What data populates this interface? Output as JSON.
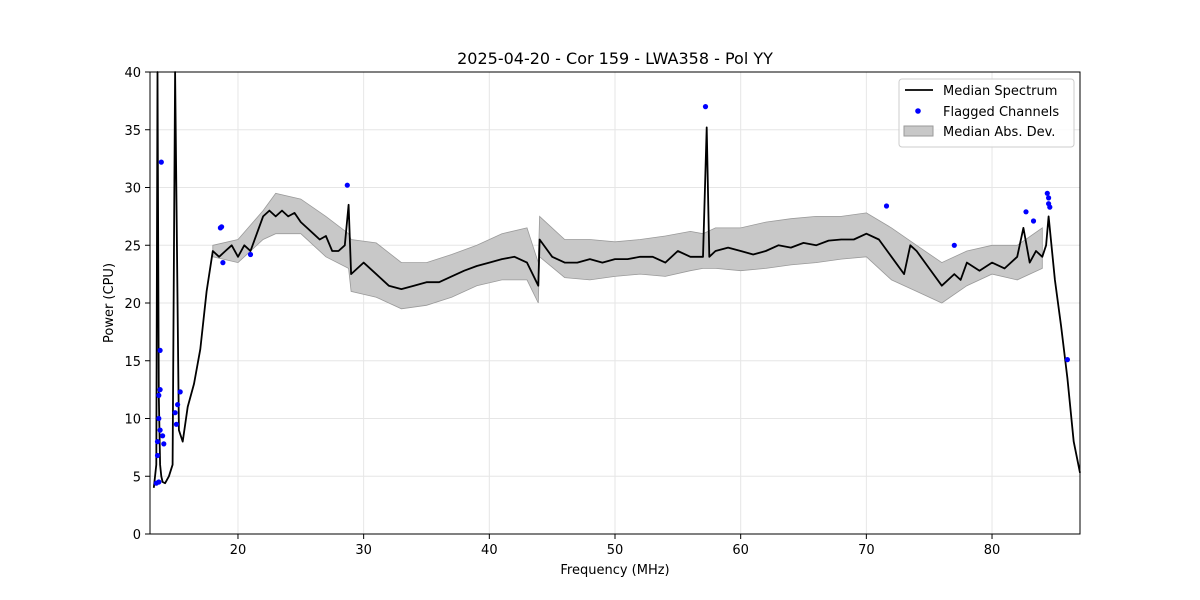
{
  "chart_data": {
    "type": "line",
    "title": "2025-04-20 - Cor 159 - LWA358 - Pol YY",
    "xlabel": "Frequency (MHz)",
    "ylabel": "Power (CPU)",
    "xlim": [
      13,
      87
    ],
    "ylim": [
      0,
      40
    ],
    "x_ticks": [
      20,
      30,
      40,
      50,
      60,
      70,
      80
    ],
    "y_ticks": [
      0,
      5,
      10,
      15,
      20,
      25,
      30,
      35,
      40
    ],
    "grid": true,
    "legend_position": "top-right",
    "colors": {
      "median": "#000000",
      "flagged": "#0000ff",
      "band_fill": "#c8c8c8",
      "band_edge": "#9a9a9a"
    },
    "series": [
      {
        "name": "Median Spectrum",
        "kind": "line",
        "x": [
          13.3,
          13.5,
          13.6,
          13.7,
          13.8,
          13.9,
          14.0,
          14.2,
          14.5,
          14.8,
          15.0,
          15.3,
          15.6,
          16.0,
          16.5,
          17.0,
          17.5,
          18.0,
          18.5,
          19.0,
          19.5,
          20.0,
          20.5,
          21.0,
          21.5,
          22.0,
          22.5,
          23.0,
          23.5,
          24.0,
          24.5,
          25.0,
          25.5,
          26.0,
          26.5,
          27.0,
          27.5,
          28.0,
          28.5,
          28.8,
          29.0,
          30.0,
          31.0,
          32.0,
          33.0,
          34.0,
          35.0,
          36.0,
          37.0,
          38.0,
          39.0,
          40.0,
          41.0,
          42.0,
          43.0,
          43.9,
          44.0,
          45.0,
          46.0,
          47.0,
          48.0,
          49.0,
          50.0,
          51.0,
          52.0,
          53.0,
          54.0,
          55.0,
          56.0,
          57.0,
          57.3,
          57.5,
          58.0,
          59.0,
          60.0,
          61.0,
          62.0,
          63.0,
          64.0,
          65.0,
          66.0,
          67.0,
          68.0,
          69.0,
          70.0,
          71.0,
          72.0,
          73.0,
          73.5,
          74.0,
          75.0,
          76.0,
          77.0,
          77.5,
          78.0,
          79.0,
          80.0,
          81.0,
          82.0,
          82.5,
          83.0,
          83.5,
          84.0,
          84.3,
          84.5,
          85.0,
          85.5,
          86.0,
          86.5,
          87.0
        ],
        "y": [
          4.0,
          6.0,
          40.0,
          12.0,
          6.0,
          5.0,
          4.5,
          4.4,
          5.0,
          6.0,
          40.0,
          9.0,
          8.0,
          11.0,
          13.0,
          16.0,
          21.0,
          24.5,
          24.0,
          24.5,
          25.0,
          24.0,
          25.0,
          24.5,
          26.0,
          27.5,
          28.0,
          27.5,
          28.0,
          27.5,
          27.8,
          27.0,
          26.5,
          26.0,
          25.5,
          25.8,
          24.5,
          24.5,
          25.0,
          28.5,
          22.5,
          23.5,
          22.5,
          21.5,
          21.2,
          21.5,
          21.8,
          21.8,
          22.3,
          22.8,
          23.2,
          23.5,
          23.8,
          24.0,
          23.5,
          21.5,
          25.5,
          24.0,
          23.5,
          23.5,
          23.8,
          23.5,
          23.8,
          23.8,
          24.0,
          24.0,
          23.5,
          24.5,
          24.0,
          24.0,
          35.2,
          24.0,
          24.5,
          24.8,
          24.5,
          24.2,
          24.5,
          25.0,
          24.8,
          25.2,
          25.0,
          25.4,
          25.5,
          25.5,
          26.0,
          25.5,
          24.0,
          22.5,
          25.0,
          24.5,
          23.0,
          21.5,
          22.5,
          22.0,
          23.5,
          22.8,
          23.5,
          23.0,
          24.0,
          26.5,
          23.5,
          24.5,
          24.0,
          25.0,
          27.5,
          22.0,
          18.0,
          13.5,
          8.0,
          5.3
        ]
      },
      {
        "name": "Flagged Channels",
        "kind": "scatter",
        "x": [
          13.5,
          13.6,
          13.6,
          13.7,
          13.7,
          13.8,
          13.8,
          13.9,
          14.0,
          14.1,
          13.7,
          13.8,
          15.0,
          15.1,
          15.2,
          15.4,
          18.6,
          18.7,
          18.8,
          21.0,
          28.7,
          57.2,
          71.6,
          77.0,
          82.7,
          83.3,
          84.4,
          84.5,
          84.5,
          84.6,
          86.0
        ],
        "y": [
          4.4,
          6.8,
          8.0,
          10.0,
          12.0,
          12.5,
          15.9,
          32.2,
          8.5,
          7.8,
          4.5,
          9.0,
          10.5,
          9.5,
          11.2,
          12.3,
          26.5,
          26.6,
          23.5,
          24.2,
          30.2,
          37.0,
          28.4,
          25.0,
          27.9,
          27.1,
          29.5,
          29.1,
          28.6,
          28.3,
          15.1
        ]
      },
      {
        "name": "Median Abs. Dev.",
        "kind": "band",
        "x": [
          18.0,
          20.0,
          22.0,
          23.0,
          25.0,
          27.0,
          28.8,
          29.0,
          31.0,
          33.0,
          35.0,
          37.0,
          39.0,
          41.0,
          43.0,
          43.9,
          44.0,
          46.0,
          48.0,
          50.0,
          52.0,
          54.0,
          56.0,
          57.0,
          58.0,
          60.0,
          62.0,
          64.0,
          66.0,
          68.0,
          70.0,
          72.0,
          74.0,
          76.0,
          78.0,
          80.0,
          82.0,
          84.0
        ],
        "lower": [
          24.0,
          23.5,
          25.5,
          26.0,
          26.0,
          24.0,
          23.0,
          21.0,
          20.5,
          19.5,
          19.8,
          20.5,
          21.5,
          22.0,
          22.0,
          20.0,
          24.0,
          22.2,
          22.0,
          22.3,
          22.5,
          22.3,
          22.8,
          23.0,
          23.0,
          22.8,
          23.0,
          23.3,
          23.5,
          23.8,
          24.0,
          22.0,
          21.0,
          20.0,
          21.5,
          22.5,
          22.0,
          23.0
        ],
        "upper": [
          25.0,
          25.5,
          28.0,
          29.5,
          29.0,
          27.5,
          26.0,
          25.5,
          25.2,
          23.5,
          23.5,
          24.2,
          25.0,
          26.0,
          26.5,
          23.5,
          27.5,
          25.5,
          25.5,
          25.3,
          25.5,
          25.8,
          26.2,
          26.0,
          26.5,
          26.5,
          27.0,
          27.3,
          27.5,
          27.5,
          27.8,
          26.5,
          25.0,
          23.5,
          24.5,
          25.0,
          25.0,
          26.5
        ]
      }
    ]
  }
}
